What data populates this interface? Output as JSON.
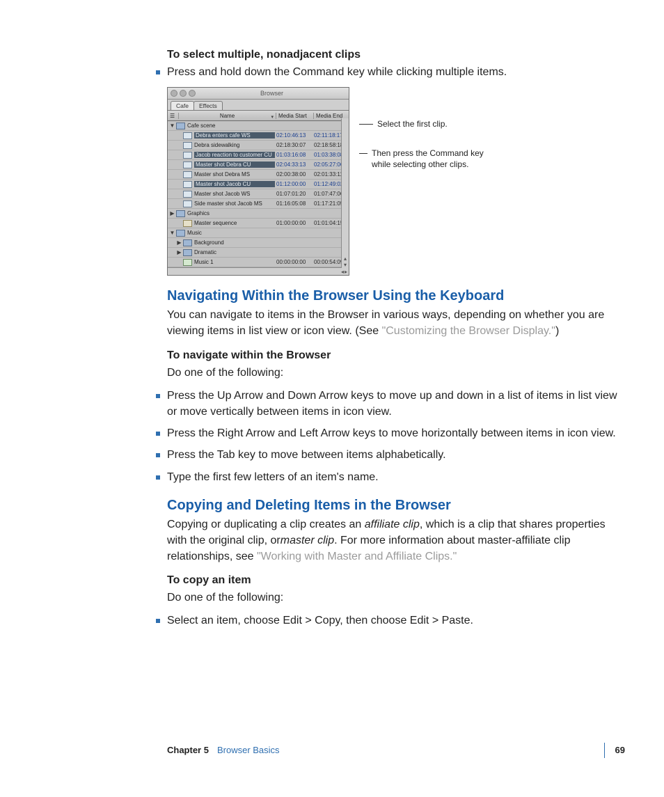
{
  "headings": {
    "h1": "To select multiple, nonadjacent clips",
    "bullet1": "Press and hold down the Command key while clicking multiple items.",
    "nav_h2": "Navigating Within the Browser Using the Keyboard",
    "nav_para_a": "You can navigate to items in the Browser in various ways, depending on whether you are viewing items in list view or icon view. (See ",
    "nav_link": "\"Customizing the Browser Display.\"",
    "nav_para_b": ")",
    "nav_sub": "To navigate within the Browser",
    "nav_sub_line": "Do one of the following:",
    "nav_b1": "Press the Up Arrow and Down Arrow keys to move up and down in a list of items in list view or move vertically between items in icon view.",
    "nav_b2": "Press the Right Arrow and Left Arrow keys to move horizontally between items in icon view.",
    "nav_b3": "Press the Tab key to move between items alphabetically.",
    "nav_b4": "Type the first few letters of an item's name.",
    "copy_h2": "Copying and Deleting Items in the Browser",
    "copy_para_a": "Copying or duplicating a clip creates an ",
    "copy_em1": "affiliate clip",
    "copy_para_b": ", which is a clip that shares properties with the original clip, or",
    "copy_em2": "master clip",
    "copy_para_c": ". For more information about master-affiliate clip relationships, see ",
    "copy_link": "\"Working with Master and Affiliate Clips.\"",
    "copy_sub": "To copy an item",
    "copy_sub_line": "Do one of the following:",
    "copy_b1": "Select an item, choose Edit > Copy, then choose Edit > Paste."
  },
  "browser": {
    "title": "Browser",
    "tabs": [
      "Cafe",
      "Effects"
    ],
    "cols": {
      "name": "Name",
      "ms": "Media Start",
      "me": "Media End"
    },
    "rows": [
      {
        "type": "bin",
        "disc": "▼",
        "indent": 0,
        "name": "Cafe scene",
        "ms": "",
        "me": "",
        "sel": false
      },
      {
        "type": "clip",
        "disc": "",
        "indent": 1,
        "name": "Debra enters cafe WS",
        "ms": "02:10:46:13",
        "me": "02:11:18:17",
        "sel": true
      },
      {
        "type": "clip",
        "disc": "",
        "indent": 1,
        "name": "Debra sidewalking",
        "ms": "02:18:30:07",
        "me": "02:18:58:18",
        "sel": false
      },
      {
        "type": "clip",
        "disc": "",
        "indent": 1,
        "name": "Jacob reaction to customer CU",
        "ms": "01:03:16:08",
        "me": "01:03:38:08",
        "sel": true
      },
      {
        "type": "clip",
        "disc": "",
        "indent": 1,
        "name": "Master shot Debra CU",
        "ms": "02:04:33:13",
        "me": "02:05:27:06",
        "sel": true
      },
      {
        "type": "clip",
        "disc": "",
        "indent": 1,
        "name": "Master shot Debra MS",
        "ms": "02:00:38:00",
        "me": "02:01:33:11",
        "sel": false
      },
      {
        "type": "clip",
        "disc": "",
        "indent": 1,
        "name": "Master shot Jacob CU",
        "ms": "01:12:00:00",
        "me": "01:12:49:02",
        "sel": true
      },
      {
        "type": "clip",
        "disc": "",
        "indent": 1,
        "name": "Master shot Jacob WS",
        "ms": "01:07:01:20",
        "me": "01:07:47:06",
        "sel": false
      },
      {
        "type": "clip",
        "disc": "",
        "indent": 1,
        "name": "Side master shot Jacob MS",
        "ms": "01:16:05:08",
        "me": "01:17:21:05",
        "sel": false
      },
      {
        "type": "bin",
        "disc": "▶",
        "indent": 0,
        "name": "Graphics",
        "ms": "",
        "me": "",
        "sel": false
      },
      {
        "type": "seq",
        "disc": "",
        "indent": 1,
        "name": "Master sequence",
        "ms": "01:00:00:00",
        "me": "01:01:04:15",
        "sel": false
      },
      {
        "type": "bin",
        "disc": "▼",
        "indent": 0,
        "name": "Music",
        "ms": "",
        "me": "",
        "sel": false
      },
      {
        "type": "bin",
        "disc": "▶",
        "indent": 1,
        "name": "Background",
        "ms": "",
        "me": "",
        "sel": false
      },
      {
        "type": "bin",
        "disc": "▶",
        "indent": 1,
        "name": "Dramatic",
        "ms": "",
        "me": "",
        "sel": false
      },
      {
        "type": "music",
        "disc": "",
        "indent": 1,
        "name": "Music 1",
        "ms": "00:00:00:00",
        "me": "00:00:54:09",
        "sel": false
      }
    ]
  },
  "callouts": {
    "first": "Select the first clip.",
    "second": "Then press the Command key while selecting other clips."
  },
  "footer": {
    "chapter": "Chapter 5",
    "title": "Browser Basics",
    "page": "69"
  },
  "colors": {
    "accent_blue": "#2f6fb0",
    "heading_blue": "#1a5ea8",
    "soft_link": "#9a9a9a"
  }
}
